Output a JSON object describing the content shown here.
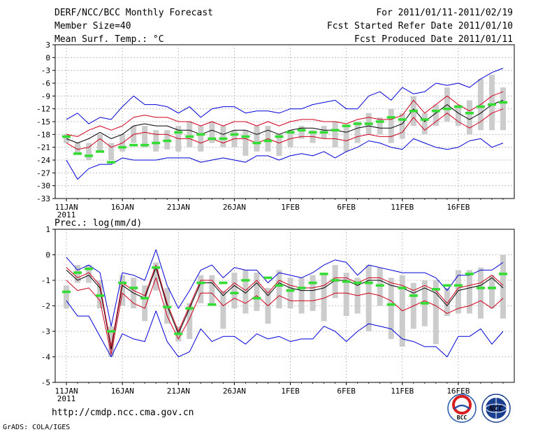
{
  "header": {
    "title_line1": "DERF/NCC/BCC Monthly Forecast",
    "title_line2": "Member Size=40",
    "title_line3": "Mean Surf. Temp.: °C",
    "right_line1": "For 2011/01/11-2011/02/19",
    "right_line2": "Fcst Started Refer Date 2011/01/10",
    "right_line3": "Fcst Produced Date 2011/01/11"
  },
  "footer": {
    "url": "http://cmdp.ncc.cma.gov.cn",
    "grads_credit": "GrADS: COLA/IGES",
    "bcc_logo_text": "BCC",
    "ncc_logo_text": "NCC"
  },
  "colors": {
    "black_line": "#000000",
    "red_line": "#d0001c",
    "blue_line": "#0000d8",
    "green_marker": "#33dd33",
    "gray_bar": "#cccccc",
    "grid": "#999999"
  },
  "chart_data": [
    {
      "type": "line",
      "title": "Mean Surf. Temp.: °C",
      "x_tick_labels": [
        "11JAN",
        "16JAN",
        "21JAN",
        "26JAN",
        "1FEB",
        "6FEB",
        "11FEB",
        "16FEB"
      ],
      "x_year_label": "2011",
      "y_ticks": [
        3,
        0,
        -3,
        -6,
        -9,
        -12,
        -15,
        -18,
        -21,
        -24,
        -27,
        -30,
        -33
      ],
      "ylim": [
        -33,
        3
      ],
      "n_days": 40,
      "series": [
        {
          "name": "ensemble_mean",
          "color": "black",
          "values": [
            -19,
            -20,
            -19,
            -17.5,
            -19,
            -18,
            -16,
            -15.5,
            -16,
            -16,
            -17,
            -17,
            -18,
            -17,
            -18,
            -17,
            -17,
            -18,
            -17,
            -18,
            -17,
            -16.5,
            -16.5,
            -17,
            -17,
            -17.5,
            -16.5,
            -16,
            -16.5,
            -16.5,
            -15.5,
            -12,
            -15,
            -13,
            -11,
            -13,
            -14.5,
            -13,
            -11,
            -10
          ]
        },
        {
          "name": "upper_red",
          "color": "red",
          "values": [
            -18,
            -18.5,
            -17,
            -16,
            -17,
            -16,
            -14,
            -13.5,
            -14,
            -14,
            -15,
            -15,
            -16,
            -15,
            -16,
            -15,
            -15,
            -16,
            -15,
            -16,
            -15,
            -14.5,
            -14.5,
            -15,
            -15,
            -15.5,
            -14.5,
            -14,
            -14.5,
            -14.5,
            -13.5,
            -10,
            -13,
            -11,
            -9,
            -11,
            -12.5,
            -11,
            -9,
            -8
          ]
        },
        {
          "name": "lower_red",
          "color": "red",
          "values": [
            -20,
            -21.5,
            -21,
            -19,
            -21,
            -20,
            -18,
            -17.5,
            -18,
            -18,
            -19,
            -19,
            -20,
            -19,
            -20,
            -19,
            -19,
            -20,
            -19,
            -20,
            -19,
            -18.5,
            -18.5,
            -19,
            -19,
            -19.5,
            -18.5,
            -18,
            -18.5,
            -18.5,
            -17.5,
            -14,
            -17,
            -15,
            -13,
            -15,
            -16.5,
            -15,
            -13,
            -12
          ]
        },
        {
          "name": "upper_blue",
          "color": "blue",
          "values": [
            -14.5,
            -13,
            -15.5,
            -14,
            -14.5,
            -11.5,
            -9,
            -11,
            -11,
            -11.5,
            -13,
            -11.5,
            -14,
            -12,
            -11.5,
            -11.5,
            -13,
            -12.5,
            -12.5,
            -13,
            -12,
            -12,
            -11,
            -10.5,
            -10,
            -12,
            -12,
            -9,
            -8,
            -10,
            -7,
            -8.5,
            -8,
            -6,
            -6.5,
            -6,
            -7,
            -5,
            -3.5,
            -2.5
          ]
        },
        {
          "name": "lower_blue",
          "color": "blue",
          "values": [
            -24,
            -28.5,
            -26,
            -25,
            -25,
            -23.5,
            -24,
            -24,
            -24,
            -23.5,
            -23.5,
            -23.5,
            -24.5,
            -24,
            -23.5,
            -24,
            -24.5,
            -23,
            -23,
            -24,
            -23,
            -22.5,
            -23,
            -22,
            -23.5,
            -22,
            -21,
            -19.5,
            -20,
            -21,
            -21.5,
            -19,
            -20,
            -21,
            -21.5,
            -21,
            -19.5,
            -19,
            -21,
            -20
          ]
        },
        {
          "name": "observed",
          "color": "green",
          "values": [
            -18.5,
            -22.5,
            -23,
            -22,
            -24.5,
            -21,
            -20.5,
            -20.5,
            -20,
            -19.5,
            -17.5,
            -18.5,
            -18,
            -19,
            -19,
            -18,
            -18.5,
            -20,
            -19.5,
            -18.5,
            -17.5,
            -17,
            -17.5,
            -17.5,
            -17,
            -16,
            -15.5,
            -15.5,
            -15,
            -14,
            -14.5,
            -12.5,
            -14.5,
            -12.5,
            -12,
            -11.5,
            -13,
            -11.5,
            -11,
            -10.5
          ]
        }
      ],
      "bars": {
        "name": "ensemble_spread",
        "low": [
          -20,
          -22.5,
          -24,
          -22,
          -24,
          -22,
          -20,
          -21,
          -22,
          -21.5,
          -22,
          -21,
          -22,
          -20,
          -21,
          -21,
          -23,
          -22,
          -22,
          -23,
          -21,
          -19,
          -20,
          -19,
          -21,
          -22,
          -20,
          -18,
          -18,
          -20,
          -19,
          -16,
          -18,
          -16,
          -15,
          -16,
          -18,
          -17,
          -17,
          -17
        ]
      },
      "bars_high": [
        -18,
        -20,
        -20,
        -18,
        -20,
        -18,
        -16,
        -16,
        -17,
        -17,
        -16,
        -15,
        -16,
        -15,
        -16,
        -17,
        -17,
        -16,
        -16,
        -18,
        -17,
        -16,
        -17,
        -16,
        -15,
        -16,
        -15,
        -13,
        -14,
        -12,
        -13,
        -9,
        -13,
        -11,
        -7,
        -11,
        -10,
        -5,
        -4,
        -7
      ]
    },
    {
      "type": "line",
      "title": "Prec.: log(mm/d)",
      "x_tick_labels": [
        "11JAN",
        "16JAN",
        "21JAN",
        "26JAN",
        "1FEB",
        "6FEB",
        "11FEB",
        "16FEB"
      ],
      "x_year_label": "2011",
      "y_ticks": [
        1,
        0,
        -1,
        -2,
        -3,
        -4,
        -5
      ],
      "ylim": [
        -5,
        1
      ],
      "n_days": 40,
      "series": [
        {
          "name": "ensemble_mean",
          "color": "black",
          "values": [
            -0.6,
            -1,
            -0.8,
            -1.3,
            -3.7,
            -1.2,
            -1.5,
            -1.7,
            -0.5,
            -2,
            -3.1,
            -2.1,
            -1.1,
            -1.1,
            -1.6,
            -1.2,
            -1.5,
            -1.1,
            -1.6,
            -1.1,
            -1.3,
            -1.4,
            -1.4,
            -1.3,
            -1,
            -1,
            -1.2,
            -1,
            -1,
            -1.2,
            -1.3,
            -1.5,
            -1.3,
            -1.5,
            -2,
            -1.4,
            -1.3,
            -1.2,
            -0.9,
            -1.3
          ]
        },
        {
          "name": "upper_red",
          "color": "red",
          "values": [
            -0.5,
            -0.9,
            -0.7,
            -1.2,
            -3.6,
            -1.1,
            -1.4,
            -1.6,
            -0.4,
            -1.9,
            -3,
            -2,
            -1,
            -1,
            -1.5,
            -1.1,
            -1.4,
            -1,
            -1.5,
            -1,
            -1.2,
            -1.3,
            -1.3,
            -1.2,
            -0.9,
            -0.9,
            -1.1,
            -0.9,
            -0.9,
            -1.1,
            -1.2,
            -1.4,
            -1.2,
            -1.4,
            -1.9,
            -1.3,
            -1.2,
            -1.1,
            -0.8,
            -1.2
          ]
        },
        {
          "name": "lower_red",
          "color": "red",
          "values": [
            -1,
            -1.4,
            -1.3,
            -1.8,
            -3.9,
            -1.5,
            -1.9,
            -2.1,
            -0.9,
            -2.4,
            -3.3,
            -2.5,
            -1.5,
            -1.5,
            -2,
            -1.7,
            -1.9,
            -1.6,
            -2,
            -1.6,
            -1.8,
            -1.8,
            -1.8,
            -1.7,
            -1.5,
            -1.5,
            -1.6,
            -1.5,
            -1.6,
            -1.8,
            -2.2,
            -2,
            -1.8,
            -2,
            -2.3,
            -2.1,
            -2,
            -1.8,
            -2.1,
            -1.7
          ]
        },
        {
          "name": "upper_blue",
          "color": "blue",
          "values": [
            -0.1,
            -0.6,
            -0.4,
            -0.7,
            -2.8,
            -0.7,
            -0.8,
            -1,
            0.2,
            -1.2,
            -2.1,
            -1.4,
            -0.6,
            -0.4,
            -0.9,
            -0.5,
            -0.6,
            -0.6,
            -1.1,
            -0.7,
            -0.8,
            -0.9,
            -0.7,
            -0.4,
            -0.2,
            -0.3,
            -0.8,
            -0.4,
            -0.5,
            -0.6,
            -0.7,
            -0.7,
            -0.7,
            -0.9,
            -1.4,
            -0.8,
            -0.8,
            -0.6,
            -0.6,
            -0.3
          ]
        },
        {
          "name": "lower_blue",
          "color": "blue",
          "values": [
            -1.8,
            -2.4,
            -2.4,
            -3.2,
            -4,
            -3.1,
            -3.3,
            -3.4,
            -2.2,
            -3.4,
            -4,
            -3.8,
            -2.9,
            -3.4,
            -3.2,
            -3.2,
            -3.5,
            -3.1,
            -3.3,
            -3.2,
            -3.4,
            -3.3,
            -3.3,
            -2.8,
            -3,
            -3.4,
            -3,
            -2.7,
            -2.8,
            -2.9,
            -3.3,
            -3.4,
            -3.6,
            -3.6,
            -4,
            -3.2,
            -3.2,
            -2.9,
            -3.5,
            -3
          ]
        },
        {
          "name": "observed",
          "color": "green",
          "values": [
            -1.45,
            -0.7,
            -0.55,
            -1.6,
            -3,
            -1.1,
            -1.3,
            -1.7,
            -0.5,
            -2.05,
            -3.1,
            -2.1,
            -1.1,
            -1.95,
            -1.1,
            -1.5,
            -1,
            -1.7,
            -0.9,
            -1.2,
            -1.4,
            -1.3,
            -1.1,
            -0.75,
            -1,
            -1.05,
            -1.1,
            -1.1,
            -1.2,
            -1.95,
            -1.3,
            -1.6,
            -1.9,
            -1.35,
            -1.2,
            -1.2,
            -0.75,
            -1.3,
            -1.3,
            -0.75
          ]
        }
      ],
      "bars": {
        "name": "ensemble_spread",
        "low": [
          -2.1,
          -1.1,
          -1.1,
          -2.1,
          -4,
          -2,
          -2.1,
          -2.6,
          -1.4,
          -2.7,
          -3.4,
          -3.3,
          -1.9,
          -2,
          -2.9,
          -2.1,
          -2.3,
          -2.2,
          -2.7,
          -2.1,
          -2.1,
          -2.3,
          -2.2,
          -2.6,
          -1.7,
          -2.4,
          -2.3,
          -3,
          -2,
          -3.3,
          -3.6,
          -2.9,
          -2.8,
          -3.5,
          -2.4,
          -2.3,
          -2.3,
          -2.5,
          -2.1,
          -2.5
        ]
      },
      "bars_high": [
        -1.2,
        -0.4,
        -0.4,
        -1,
        -2.8,
        -0.8,
        -0.9,
        -1.2,
        -0.3,
        -1.3,
        -2.8,
        -1.9,
        -0.8,
        -0.8,
        -1.4,
        -0.7,
        -0.6,
        -0.7,
        -1.3,
        -0.6,
        -0.9,
        -0.9,
        -0.8,
        -0.7,
        -0.4,
        -0.7,
        -0.9,
        -0.4,
        -0.5,
        -0.9,
        -0.8,
        -1.1,
        -1,
        -1,
        -1.3,
        -0.6,
        -0.6,
        -0.5,
        -0.8,
        0
      ]
    }
  ]
}
